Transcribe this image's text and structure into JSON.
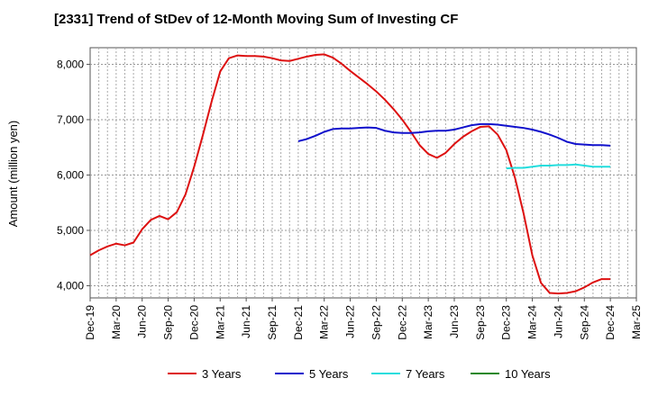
{
  "chart_data": {
    "type": "line",
    "title": "[2331]  Trend of StDev of 12-Month Moving Sum of Investing CF",
    "xlabel": "",
    "ylabel": "Amount (million yen)",
    "ylim": [
      3780,
      8300
    ],
    "yticks": [
      4000,
      5000,
      6000,
      7000,
      8000
    ],
    "ytick_labels": [
      "4,000",
      "5,000",
      "6,000",
      "7,000",
      "8,000"
    ],
    "xtick_labels": [
      "Dec-19",
      "Mar-20",
      "Jun-20",
      "Sep-20",
      "Dec-20",
      "Mar-21",
      "Jun-21",
      "Sep-21",
      "Dec-21",
      "Mar-22",
      "Jun-22",
      "Sep-22",
      "Dec-22",
      "Mar-23",
      "Jun-23",
      "Sep-23",
      "Dec-23",
      "Mar-24",
      "Jun-24",
      "Sep-24",
      "Dec-24",
      "Mar-25"
    ],
    "grid": true,
    "legend_position": "bottom",
    "series": [
      {
        "name": "3 Years",
        "color": "#dd1111",
        "start_index": 0,
        "values": [
          4550,
          4640,
          4710,
          4760,
          4730,
          4780,
          5020,
          5190,
          5260,
          5200,
          5330,
          5650,
          6150,
          6720,
          7320,
          7870,
          8110,
          8160,
          8150,
          8150,
          8140,
          8110,
          8070,
          8060,
          8100,
          8140,
          8170,
          8180,
          8120,
          8010,
          7880,
          7760,
          7640,
          7510,
          7360,
          7190,
          7000,
          6780,
          6540,
          6380,
          6310,
          6400,
          6560,
          6690,
          6790,
          6870,
          6880,
          6730,
          6450,
          5950,
          5300,
          4550,
          4050,
          3870,
          3860,
          3870,
          3900,
          3970,
          4060,
          4120,
          4120
        ]
      },
      {
        "name": "5 Years",
        "color": "#1111cc",
        "start_index": 24,
        "values": [
          6610,
          6650,
          6710,
          6780,
          6830,
          6840,
          6840,
          6850,
          6860,
          6850,
          6800,
          6770,
          6760,
          6760,
          6770,
          6790,
          6800,
          6800,
          6820,
          6860,
          6900,
          6920,
          6920,
          6910,
          6890,
          6870,
          6850,
          6820,
          6780,
          6730,
          6670,
          6600,
          6560,
          6550,
          6540,
          6540,
          6530
        ]
      },
      {
        "name": "7 Years",
        "color": "#22dddd",
        "start_index": 48,
        "values": [
          6120,
          6130,
          6130,
          6150,
          6170,
          6170,
          6180,
          6180,
          6190,
          6170,
          6150,
          6150,
          6150
        ]
      },
      {
        "name": "10 Years",
        "color": "#228822",
        "start_index": 0,
        "values": []
      }
    ]
  }
}
